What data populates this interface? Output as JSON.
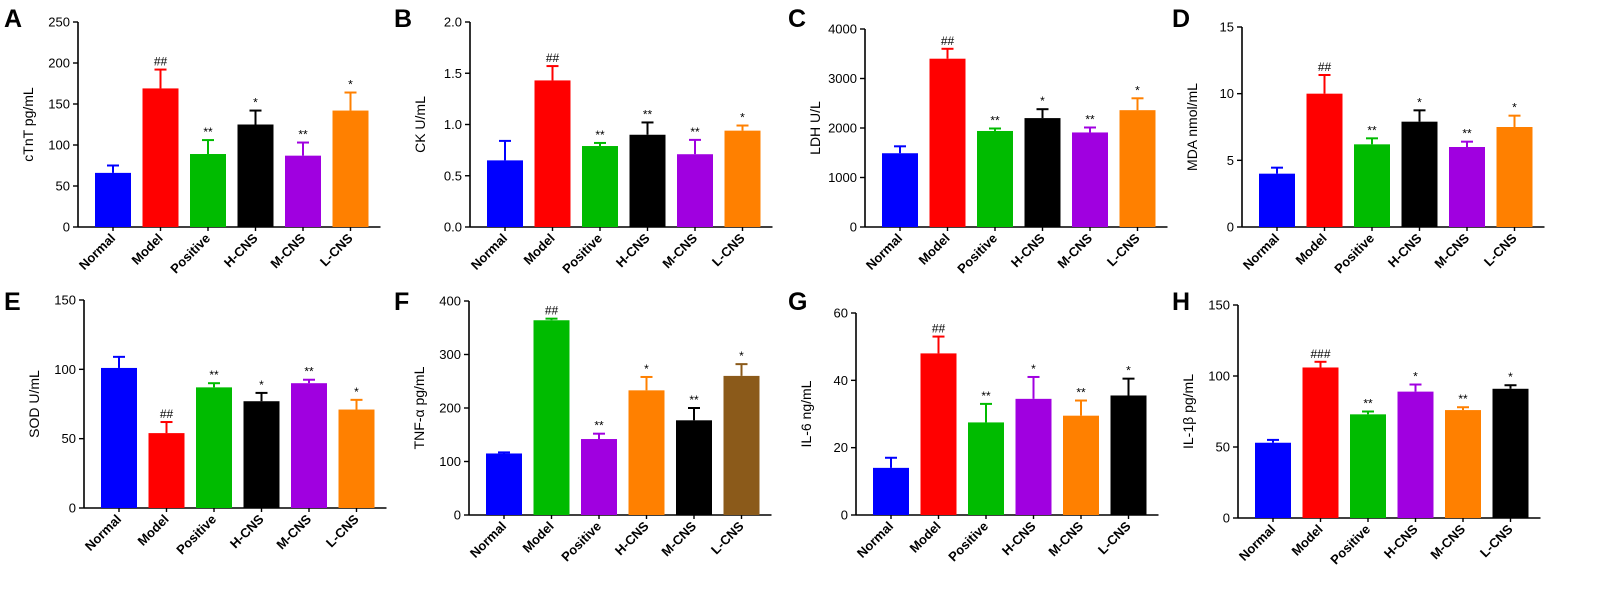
{
  "chart_data": [
    {
      "panel": "A",
      "type": "bar",
      "title": "",
      "xlabel": "",
      "ylabel": "cTnT pg/mL",
      "ylim": [
        0,
        250
      ],
      "yticks": [
        "0",
        "50",
        "100",
        "150",
        "200",
        "250"
      ],
      "categories": [
        "Normal",
        "Model",
        "Positive",
        "H-CNS",
        "M-CNS",
        "L-CNS"
      ],
      "values": [
        66,
        169,
        89,
        125,
        87,
        142
      ],
      "errors": [
        9,
        23,
        17,
        17,
        16,
        22
      ],
      "annotations": [
        "",
        "##",
        "**",
        "*",
        "**",
        "*"
      ],
      "colors": [
        "#0000ff",
        "#ff0000",
        "#00bb00",
        "#000000",
        "#a000e0",
        "#ff8000"
      ]
    },
    {
      "panel": "B",
      "type": "bar",
      "title": "",
      "xlabel": "",
      "ylabel": "CK U/mL",
      "ylim": [
        0,
        2.0
      ],
      "yticks": [
        "0.0",
        "0.5",
        "1.0",
        "1.5",
        "2.0"
      ],
      "categories": [
        "Normal",
        "Model",
        "Positive",
        "H-CNS",
        "M-CNS",
        "L-CNS"
      ],
      "values": [
        0.65,
        1.43,
        0.79,
        0.9,
        0.71,
        0.94
      ],
      "errors": [
        0.19,
        0.14,
        0.03,
        0.12,
        0.14,
        0.05
      ],
      "annotations": [
        "",
        "##",
        "**",
        "**",
        "**",
        "*"
      ],
      "colors": [
        "#0000ff",
        "#ff0000",
        "#00bb00",
        "#000000",
        "#a000e0",
        "#ff8000"
      ]
    },
    {
      "panel": "C",
      "type": "bar",
      "title": "",
      "xlabel": "",
      "ylabel": "LDH U/L",
      "ylim": [
        0,
        4000
      ],
      "yticks": [
        "0",
        "1000",
        "2000",
        "3000",
        "4000"
      ],
      "categories": [
        "Normal",
        "Model",
        "Positive",
        "H-CNS",
        "M-CNS",
        "L-CNS"
      ],
      "values": [
        1490,
        3400,
        1940,
        2200,
        1910,
        2360
      ],
      "errors": [
        140,
        200,
        50,
        180,
        100,
        240
      ],
      "annotations": [
        "",
        "##",
        "**",
        "*",
        "**",
        "*"
      ],
      "colors": [
        "#0000ff",
        "#ff0000",
        "#00bb00",
        "#000000",
        "#a000e0",
        "#ff8000"
      ]
    },
    {
      "panel": "D",
      "type": "bar",
      "title": "",
      "xlabel": "",
      "ylabel": "MDA nmol/mL",
      "ylim": [
        0,
        15
      ],
      "yticks": [
        "0",
        "5",
        "10",
        "15"
      ],
      "categories": [
        "Normal",
        "Model",
        "Positive",
        "H-CNS",
        "M-CNS",
        "L-CNS"
      ],
      "values": [
        4.0,
        10.0,
        6.2,
        7.9,
        6.0,
        7.5
      ],
      "errors": [
        0.45,
        1.4,
        0.45,
        0.85,
        0.4,
        0.85
      ],
      "annotations": [
        "",
        "##",
        "**",
        "*",
        "**",
        "*"
      ],
      "colors": [
        "#0000ff",
        "#ff0000",
        "#00bb00",
        "#000000",
        "#a000e0",
        "#ff8000"
      ]
    },
    {
      "panel": "E",
      "type": "bar",
      "title": "",
      "xlabel": "",
      "ylabel": "SOD U/mL",
      "ylim": [
        0,
        150
      ],
      "yticks": [
        "0",
        "50",
        "100",
        "150"
      ],
      "categories": [
        "Normal",
        "Model",
        "Positive",
        "H-CNS",
        "M-CNS",
        "L-CNS"
      ],
      "values": [
        101,
        54,
        87,
        77,
        90,
        71
      ],
      "errors": [
        8,
        8,
        3,
        6,
        2.5,
        7
      ],
      "annotations": [
        "",
        "##",
        "**",
        "*",
        "**",
        "*"
      ],
      "colors": [
        "#0000ff",
        "#ff0000",
        "#00bb00",
        "#000000",
        "#a000e0",
        "#ff8000"
      ]
    },
    {
      "panel": "F",
      "type": "bar",
      "title": "",
      "xlabel": "",
      "ylabel": "TNF-α pg/mL",
      "ylim": [
        0,
        400
      ],
      "yticks": [
        "0",
        "100",
        "200",
        "300",
        "400"
      ],
      "categories": [
        "Normal",
        "Model",
        "Positive",
        "H-CNS",
        "M-CNS",
        "L-CNS"
      ],
      "values": [
        115,
        364,
        142,
        233,
        177,
        260
      ],
      "errors": [
        2,
        3,
        10,
        25,
        23,
        22
      ],
      "annotations": [
        "",
        "##",
        "**",
        "*",
        "**",
        "*"
      ],
      "colors": [
        "#0000ff",
        "#00bb00",
        "#a000e0",
        "#ff8000",
        "#000000",
        "#8b5a1a"
      ]
    },
    {
      "panel": "G",
      "type": "bar",
      "title": "",
      "xlabel": "",
      "ylabel": "IL-6 ng/mL",
      "ylim": [
        0,
        60
      ],
      "yticks": [
        "0",
        "20",
        "40",
        "60"
      ],
      "categories": [
        "Normal",
        "Model",
        "Positive",
        "H-CNS",
        "M-CNS",
        "L-CNS"
      ],
      "values": [
        14,
        48,
        27.5,
        34.5,
        29.5,
        35.5
      ],
      "errors": [
        3,
        5,
        5.5,
        6.5,
        4.5,
        5
      ],
      "annotations": [
        "",
        "##",
        "**",
        "*",
        "**",
        "*"
      ],
      "colors": [
        "#0000ff",
        "#ff0000",
        "#00bb00",
        "#a000e0",
        "#ff8000",
        "#000000"
      ]
    },
    {
      "panel": "H",
      "type": "bar",
      "title": "",
      "xlabel": "",
      "ylabel": "IL-1β pg/mL",
      "ylim": [
        0,
        150
      ],
      "yticks": [
        "0",
        "50",
        "100",
        "150"
      ],
      "categories": [
        "Normal",
        "Model",
        "Positive",
        "H-CNS",
        "M-CNS",
        "L-CNS"
      ],
      "values": [
        53,
        106,
        73,
        89,
        76,
        91
      ],
      "errors": [
        2,
        4,
        2,
        5,
        2,
        2.5
      ],
      "annotations": [
        "",
        "###",
        "**",
        "*",
        "**",
        "*"
      ],
      "colors": [
        "#0000ff",
        "#ff0000",
        "#00bb00",
        "#a000e0",
        "#ff8000",
        "#000000"
      ]
    }
  ]
}
